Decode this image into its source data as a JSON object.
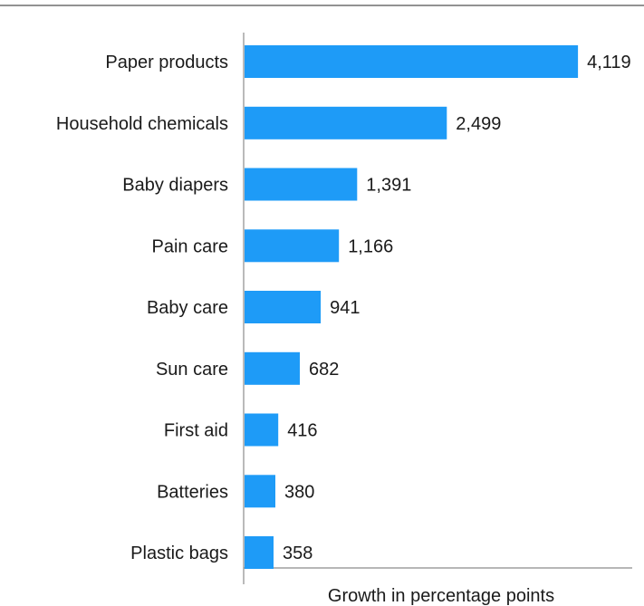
{
  "chart_data": {
    "type": "bar",
    "orientation": "horizontal",
    "categories": [
      "Paper products",
      "Household chemicals",
      "Baby diapers",
      "Pain care",
      "Baby care",
      "Sun care",
      "First aid",
      "Batteries",
      "Plastic bags"
    ],
    "values": [
      4119,
      2499,
      1391,
      1166,
      941,
      682,
      416,
      380,
      358
    ],
    "value_labels": [
      "4,119",
      "2,499",
      "1,391",
      "1,166",
      "941",
      "682",
      "416",
      "380",
      "358"
    ],
    "title": "",
    "xlabel": "Growth in percentage points",
    "ylabel": "",
    "xlim": [
      0,
      4800
    ],
    "grid": false,
    "legend": "none",
    "bar_color": "#1e9bf7",
    "text_color": "#1a1a1a",
    "axis_color": "#8c8c8c"
  }
}
